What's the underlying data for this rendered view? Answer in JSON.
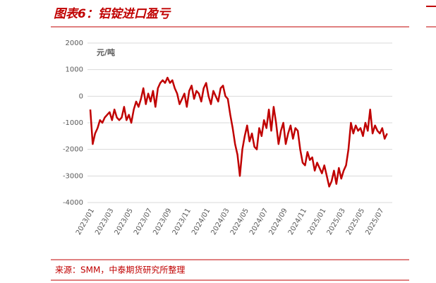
{
  "header": {
    "title": "图表6：铝锭进口盈亏"
  },
  "chart_data": {
    "type": "line",
    "y_label": "元/吨",
    "categories": [
      "2023/01",
      null,
      null,
      null,
      null,
      null,
      null,
      null,
      "2023/03",
      null,
      null,
      null,
      null,
      null,
      null,
      null,
      "2023/05",
      null,
      null,
      null,
      null,
      null,
      null,
      null,
      "2023/07",
      null,
      null,
      null,
      null,
      null,
      null,
      null,
      "2023/09",
      null,
      null,
      null,
      null,
      null,
      null,
      null,
      "2023/11",
      null,
      null,
      null,
      null,
      null,
      null,
      null,
      "2024/01",
      null,
      null,
      null,
      null,
      null,
      null,
      null,
      "2024/03",
      null,
      null,
      null,
      null,
      null,
      null,
      null,
      "2024/05",
      null,
      null,
      null,
      null,
      null,
      null,
      null,
      "2024/07",
      null,
      null,
      null,
      null,
      null,
      null,
      null,
      "2024/09",
      null,
      null,
      null,
      null,
      null,
      null,
      null,
      "2024/11",
      null,
      null,
      null,
      null,
      null,
      null,
      null,
      "2025/01",
      null,
      null,
      null,
      null,
      null,
      null,
      null,
      "2025/03",
      null,
      null,
      null,
      null,
      null,
      null,
      null,
      "2025/05",
      null,
      null,
      null,
      null,
      null,
      null,
      null,
      "2025/07",
      null,
      null,
      null
    ],
    "values": [
      -500,
      -1800,
      -1400,
      -1200,
      -900,
      -1000,
      -800,
      -700,
      -600,
      -900,
      -500,
      -800,
      -900,
      -800,
      -400,
      -900,
      -700,
      -1000,
      -500,
      -200,
      -400,
      -100,
      300,
      -300,
      100,
      -200,
      200,
      -400,
      300,
      500,
      600,
      500,
      700,
      500,
      600,
      300,
      100,
      -300,
      -100,
      100,
      -400,
      200,
      400,
      -100,
      200,
      100,
      -200,
      300,
      500,
      0,
      -300,
      200,
      0,
      -200,
      300,
      400,
      0,
      -100,
      -700,
      -1200,
      -1800,
      -2200,
      -3000,
      -2000,
      -1500,
      -1100,
      -1700,
      -1400,
      -1900,
      -2000,
      -1200,
      -1500,
      -900,
      -1200,
      -500,
      -1300,
      -400,
      -1000,
      -1800,
      -1300,
      -1000,
      -1800,
      -1400,
      -1100,
      -1600,
      -1200,
      -1300,
      -2000,
      -2500,
      -2600,
      -2100,
      -2400,
      -2300,
      -2800,
      -2500,
      -2700,
      -2900,
      -2600,
      -3000,
      -3400,
      -3200,
      -2800,
      -3300,
      -2700,
      -3100,
      -2800,
      -2600,
      -2000,
      -1000,
      -1400,
      -1100,
      -1300,
      -1200,
      -1500,
      -1000,
      -1300,
      -500,
      -1400,
      -1100,
      -1300,
      -1400,
      -1200,
      -1600,
      -1400
    ],
    "color": "#c00000",
    "ylim": [
      -4000,
      2000
    ],
    "yticks": [
      -4000,
      -3000,
      -2000,
      -1000,
      0,
      1000,
      2000
    ],
    "grid": true
  },
  "footer": {
    "source": "来源：SMM，中泰期货研究所整理"
  }
}
